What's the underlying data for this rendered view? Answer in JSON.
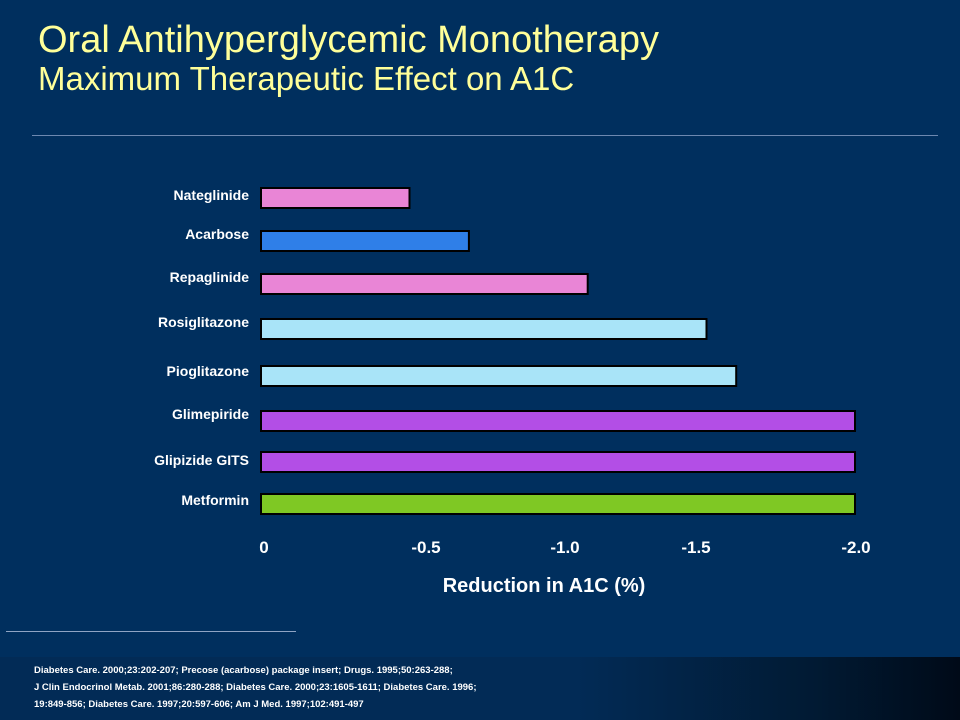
{
  "title": {
    "main": "Oral Antihyperglycemic Monotherapy",
    "sub": "Maximum Therapeutic Effect on A1C"
  },
  "colors": {
    "background": "#002f5e",
    "title": "#ffff99"
  },
  "chart_data": {
    "type": "bar",
    "orientation": "horizontal",
    "categories": [
      "Nateglinide",
      "Acarbose",
      "Repaglinide",
      "Rosiglitazone",
      "Pioglitazone",
      "Glimepiride",
      "Glipizide GITS",
      "Metformin"
    ],
    "values": [
      -0.5,
      -0.7,
      -1.1,
      -1.5,
      -1.6,
      -2.0,
      -2.0,
      -2.0
    ],
    "bar_colors": [
      "#e985d6",
      "#2f7fe8",
      "#e985d6",
      "#a9e4f8",
      "#a9e4f8",
      "#b34ee6",
      "#b34ee6",
      "#7fc824"
    ],
    "xlabel": "Reduction in A1C (%)",
    "ticks": [
      {
        "value": 0,
        "label": "0"
      },
      {
        "value": -0.5,
        "label": "-0.5"
      },
      {
        "value": -1.0,
        "label": "-1.0"
      },
      {
        "value": -1.5,
        "label": "-1.5"
      },
      {
        "value": -2.0,
        "label": "-2.0"
      }
    ],
    "xlim": [
      0,
      -2.0
    ],
    "grid": false,
    "legend": "none"
  },
  "references": [
    "Diabetes Care. 2000;23:202-207; Precose (acarbose) package insert; Drugs. 1995;50:263-288;",
    "J Clin Endocrinol Metab. 2001;86:280-288; Diabetes Care. 2000;23:1605-1611; Diabetes Care. 1996;",
    "19:849-856; Diabetes Care. 1997;20:597-606; Am J Med. 1997;102:491-497"
  ]
}
